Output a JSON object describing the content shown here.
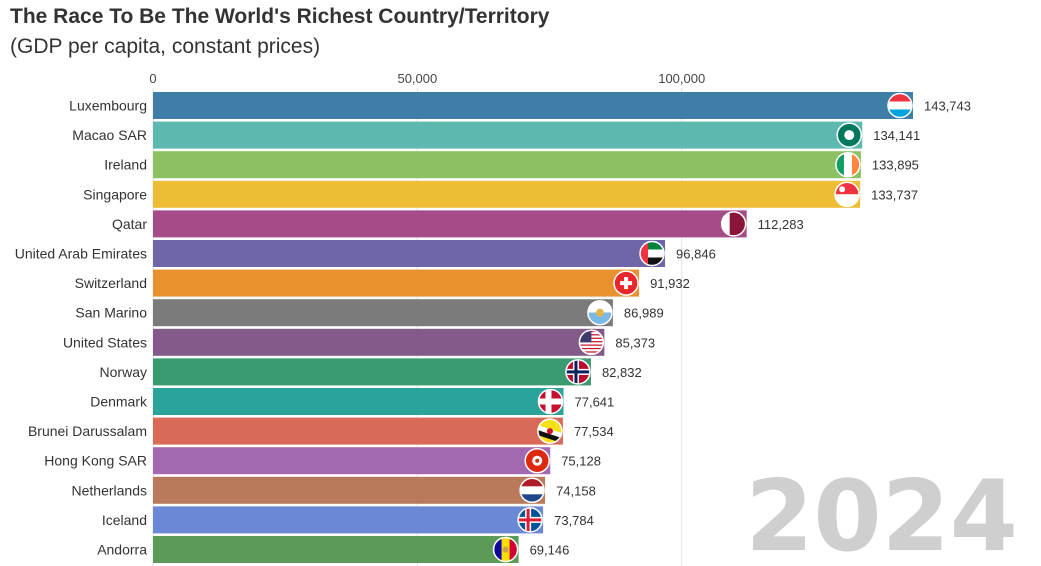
{
  "chart_data": {
    "type": "bar",
    "orientation": "horizontal",
    "title": "The Race To Be The World's Richest Country/Territory",
    "subtitle": "(GDP per capita, constant prices)",
    "year": "2024",
    "xlim": [
      0,
      143743
    ],
    "ticks": [
      {
        "value": 0,
        "label": "0"
      },
      {
        "value": 50000,
        "label": "50,000"
      },
      {
        "value": 100000,
        "label": "100,000"
      }
    ],
    "grid": true,
    "bars": [
      {
        "category": "Luxembourg",
        "value": 143743,
        "value_label": "143,743",
        "color": "#3f7ea6",
        "flag": "luxembourg-flag-icon"
      },
      {
        "category": "Macao SAR",
        "value": 134141,
        "value_label": "134,141",
        "color": "#5db8b0",
        "flag": "macao-flag-icon"
      },
      {
        "category": "Ireland",
        "value": 133895,
        "value_label": "133,895",
        "color": "#8cc063",
        "flag": "ireland-flag-icon"
      },
      {
        "category": "Singapore",
        "value": 133737,
        "value_label": "133,737",
        "color": "#ecbd35",
        "flag": "singapore-flag-icon"
      },
      {
        "category": "Qatar",
        "value": 112283,
        "value_label": "112,283",
        "color": "#a54b87",
        "flag": "qatar-flag-icon"
      },
      {
        "category": "United Arab Emirates",
        "value": 96846,
        "value_label": "96,846",
        "color": "#6f66a8",
        "flag": "uae-flag-icon"
      },
      {
        "category": "Switzerland",
        "value": 91932,
        "value_label": "91,932",
        "color": "#e9912f",
        "flag": "switzerland-flag-icon"
      },
      {
        "category": "San Marino",
        "value": 86989,
        "value_label": "86,989",
        "color": "#7b7b7b",
        "flag": "san-marino-flag-icon"
      },
      {
        "category": "United States",
        "value": 85373,
        "value_label": "85,373",
        "color": "#845a8a",
        "flag": "united-states-flag-icon"
      },
      {
        "category": "Norway",
        "value": 82832,
        "value_label": "82,832",
        "color": "#3a9a70",
        "flag": "norway-flag-icon"
      },
      {
        "category": "Denmark",
        "value": 77641,
        "value_label": "77,641",
        "color": "#2aa39a",
        "flag": "denmark-flag-icon"
      },
      {
        "category": "Brunei Darussalam",
        "value": 77534,
        "value_label": "77,534",
        "color": "#d96a58",
        "flag": "brunei-flag-icon"
      },
      {
        "category": "Hong Kong SAR",
        "value": 75128,
        "value_label": "75,128",
        "color": "#a368b0",
        "flag": "hong-kong-flag-icon"
      },
      {
        "category": "Netherlands",
        "value": 74158,
        "value_label": "74,158",
        "color": "#b87a5a",
        "flag": "netherlands-flag-icon"
      },
      {
        "category": "Iceland",
        "value": 73784,
        "value_label": "73,784",
        "color": "#6a88d6",
        "flag": "iceland-flag-icon"
      },
      {
        "category": "Andorra",
        "value": 69146,
        "value_label": "69,146",
        "color": "#5c9a58",
        "flag": "andorra-flag-icon"
      }
    ]
  }
}
